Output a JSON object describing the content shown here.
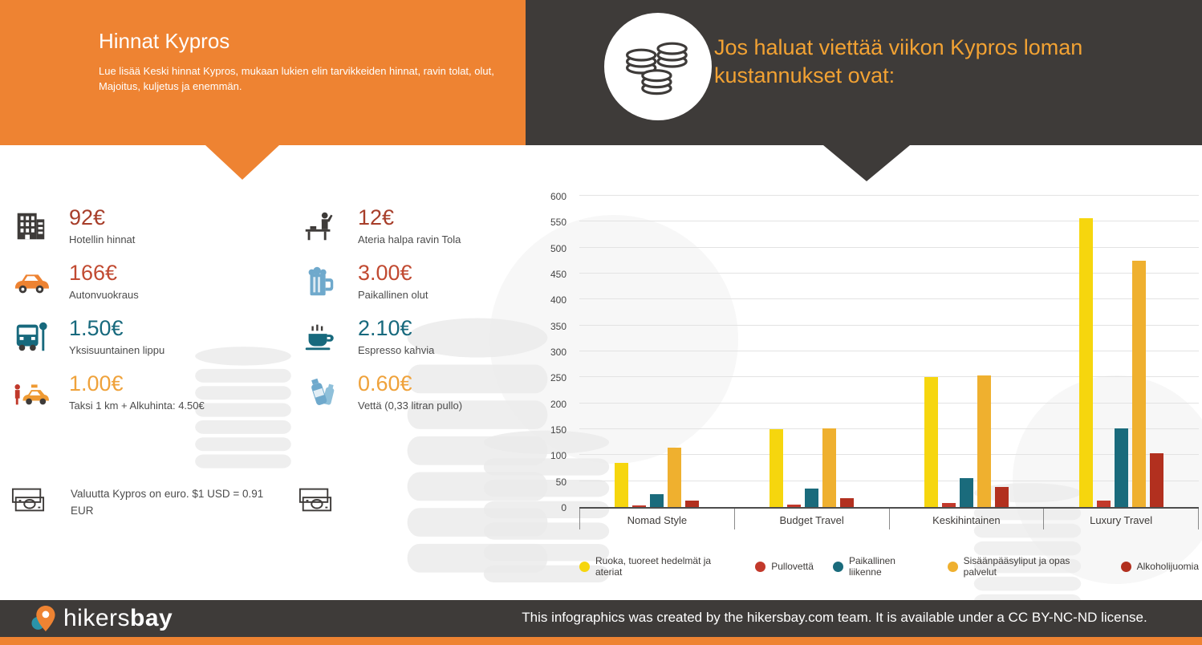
{
  "header": {
    "title": "Hinnat Kypros",
    "description": "Lue lisää Keski hinnat Kypros, mukaan lukien elin tarvikkeiden hinnat, ravin tolat, olut, Majoitus, kuljetus ja enemmän.",
    "headline": "Jos haluat viettää viikon Kypros loman kustannukset ovat:"
  },
  "prices": {
    "left": [
      {
        "value": "92€",
        "label": "Hotellin hinnat",
        "icon": "hotel-icon",
        "color": "#a73e2a"
      },
      {
        "value": "166€",
        "label": "Autonvuokraus",
        "icon": "car-icon",
        "color": "#c14a31"
      },
      {
        "value": "1.50€",
        "label": "Yksisuuntainen lippu",
        "icon": "bus-icon",
        "color": "#17697d"
      },
      {
        "value": "1.00€",
        "label": "Taksi 1 km + Alkuhinta: 4.50€",
        "icon": "taxi-icon",
        "color": "#efa23b"
      }
    ],
    "right": [
      {
        "value": "12€",
        "label": "Ateria halpa ravin Tola",
        "icon": "restaurant-icon",
        "color": "#a73e2a"
      },
      {
        "value": "3.00€",
        "label": "Paikallinen olut",
        "icon": "beer-icon",
        "color": "#c14a31"
      },
      {
        "value": "2.10€",
        "label": "Espresso kahvia",
        "icon": "coffee-icon",
        "color": "#17697d"
      },
      {
        "value": "0.60€",
        "label": "Vettä (0,33 litran pullo)",
        "icon": "water-icon",
        "color": "#efa23b"
      }
    ]
  },
  "currency_note": "Valuutta Kypros on euro. $1 USD = 0.91 EUR",
  "chart_data": {
    "type": "bar",
    "categories": [
      "Nomad Style",
      "Budget Travel",
      "Keskihintainen",
      "Luxury Travel"
    ],
    "series": [
      {
        "name": "Ruoka, tuoreet hedelmät ja ateriat",
        "color": "#f6d60e",
        "values": [
          85,
          150,
          250,
          557
        ]
      },
      {
        "name": "Pullovettä",
        "color": "#c2392b",
        "values": [
          3,
          5,
          8,
          13
        ]
      },
      {
        "name": "Paikallinen liikenne",
        "color": "#1a6b7c",
        "values": [
          25,
          35,
          55,
          152
        ]
      },
      {
        "name": "Sisäänpääsyliput ja opas palvelut",
        "color": "#efb02f",
        "values": [
          115,
          152,
          253,
          475
        ]
      },
      {
        "name": "Alkoholijuomia",
        "color": "#b2301f",
        "values": [
          12,
          17,
          38,
          103
        ]
      }
    ],
    "ylim": [
      0,
      600
    ],
    "ytick_step": 50,
    "grid": true,
    "legend_position": "bottom"
  },
  "footer": {
    "logo_text_light": "hikers",
    "logo_text_bold": "bay",
    "license_text": "This infographics was created by the hikersbay.com team. It is available under a CC BY-NC-ND license."
  }
}
